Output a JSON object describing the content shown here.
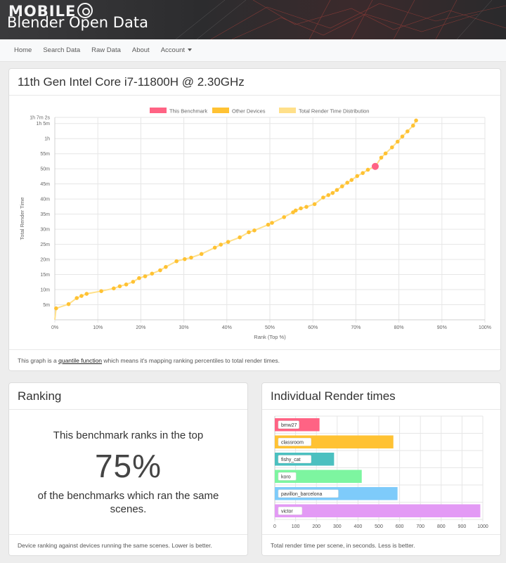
{
  "header": {
    "watermark": "MOBILE",
    "site_title": "Blender Open Data"
  },
  "nav": {
    "items": [
      "Home",
      "Search Data",
      "Raw Data",
      "About",
      "Account"
    ]
  },
  "main_card": {
    "title": "11th Gen Intel Core i7-11800H @ 2.30GHz",
    "footer_prefix": "This graph is a ",
    "footer_link": "quantile function",
    "footer_suffix": " which means it's mapping ranking percentiles to total render times."
  },
  "ranking_card": {
    "title": "Ranking",
    "line1": "This benchmark ranks in the top",
    "percent": "75%",
    "line2": "of the benchmarks which ran the same scenes.",
    "footer": "Device ranking against devices running the same scenes. Lower is better."
  },
  "times_card": {
    "title": "Individual Render times",
    "footer": "Total render time per scene, in seconds. Less is better."
  },
  "colors": {
    "this_benchmark": "#ff6384",
    "other_devices": "#ffc233",
    "distribution": "#ffe08a"
  },
  "chart_data": [
    {
      "type": "line",
      "xlabel": "Rank (Top %)",
      "ylabel": "Total Render Time",
      "legend": [
        "This Benchmark",
        "Other Devices",
        "Total Render Time Distribution"
      ],
      "legend_position": "top",
      "grid": true,
      "xlim": [
        0,
        100
      ],
      "ylim": [
        0,
        67.03
      ],
      "x_ticks": [
        "0%",
        "10%",
        "20%",
        "30%",
        "40%",
        "50%",
        "60%",
        "70%",
        "80%",
        "90%",
        "100%"
      ],
      "y_ticks": [
        {
          "label": "5m",
          "value": 5
        },
        {
          "label": "10m",
          "value": 10
        },
        {
          "label": "15m",
          "value": 15
        },
        {
          "label": "20m",
          "value": 20
        },
        {
          "label": "25m",
          "value": 25
        },
        {
          "label": "30m",
          "value": 30
        },
        {
          "label": "35m",
          "value": 35
        },
        {
          "label": "40m",
          "value": 40
        },
        {
          "label": "45m",
          "value": 45
        },
        {
          "label": "50m",
          "value": 50
        },
        {
          "label": "55m",
          "value": 55
        },
        {
          "label": "1h",
          "value": 60
        },
        {
          "label": "1h 5m",
          "value": 65
        },
        {
          "label": "1h 7m 2s",
          "value": 67.03
        }
      ],
      "this_benchmark": {
        "x": 74.5,
        "y": 50.8
      },
      "other_devices": [
        [
          0.3,
          3.8
        ],
        [
          3.2,
          5.2
        ],
        [
          5.1,
          7.2
        ],
        [
          6.2,
          7.9
        ],
        [
          7.4,
          8.6
        ],
        [
          10.8,
          9.5
        ],
        [
          13.7,
          10.4
        ],
        [
          15.1,
          11.1
        ],
        [
          16.6,
          11.7
        ],
        [
          18.2,
          12.6
        ],
        [
          19.6,
          13.8
        ],
        [
          21.0,
          14.4
        ],
        [
          22.6,
          15.3
        ],
        [
          24.5,
          16.4
        ],
        [
          25.8,
          17.5
        ],
        [
          28.3,
          19.4
        ],
        [
          30.2,
          20.1
        ],
        [
          31.7,
          20.6
        ],
        [
          34.1,
          21.8
        ],
        [
          37.2,
          23.9
        ],
        [
          38.6,
          24.9
        ],
        [
          40.3,
          25.8
        ],
        [
          43.0,
          27.3
        ],
        [
          45.1,
          29.0
        ],
        [
          46.4,
          29.6
        ],
        [
          49.6,
          31.5
        ],
        [
          50.5,
          32.1
        ],
        [
          53.3,
          34.0
        ],
        [
          55.4,
          35.6
        ],
        [
          56.0,
          36.2
        ],
        [
          57.2,
          36.9
        ],
        [
          58.5,
          37.4
        ],
        [
          60.4,
          38.3
        ],
        [
          62.4,
          40.5
        ],
        [
          63.6,
          41.3
        ],
        [
          64.6,
          42.0
        ],
        [
          65.6,
          43.0
        ],
        [
          66.8,
          44.2
        ],
        [
          68.0,
          45.4
        ],
        [
          69.0,
          46.3
        ],
        [
          70.3,
          47.6
        ],
        [
          71.6,
          48.6
        ],
        [
          72.8,
          49.7
        ],
        [
          75.9,
          53.7
        ],
        [
          76.9,
          55.1
        ],
        [
          78.4,
          57.1
        ],
        [
          79.7,
          59.0
        ],
        [
          80.8,
          60.7
        ],
        [
          82.0,
          62.4
        ],
        [
          83.3,
          64.3
        ],
        [
          84.0,
          66.0
        ]
      ]
    },
    {
      "type": "bar",
      "orientation": "horizontal",
      "categories": [
        "bmw27",
        "classroom",
        "fishy_cat",
        "koro",
        "pavillon_barcelona",
        "victor"
      ],
      "values": [
        215,
        570,
        285,
        418,
        590,
        988
      ],
      "colors": [
        "#ff6384",
        "#ffc233",
        "#4bc0c0",
        "#7df5a0",
        "#7ecbfa",
        "#e39af5"
      ],
      "xlim": [
        0,
        1000
      ],
      "x_ticks": [
        "0",
        "100",
        "200",
        "300",
        "400",
        "500",
        "600",
        "700",
        "800",
        "900",
        "1000"
      ],
      "grid": true
    }
  ]
}
